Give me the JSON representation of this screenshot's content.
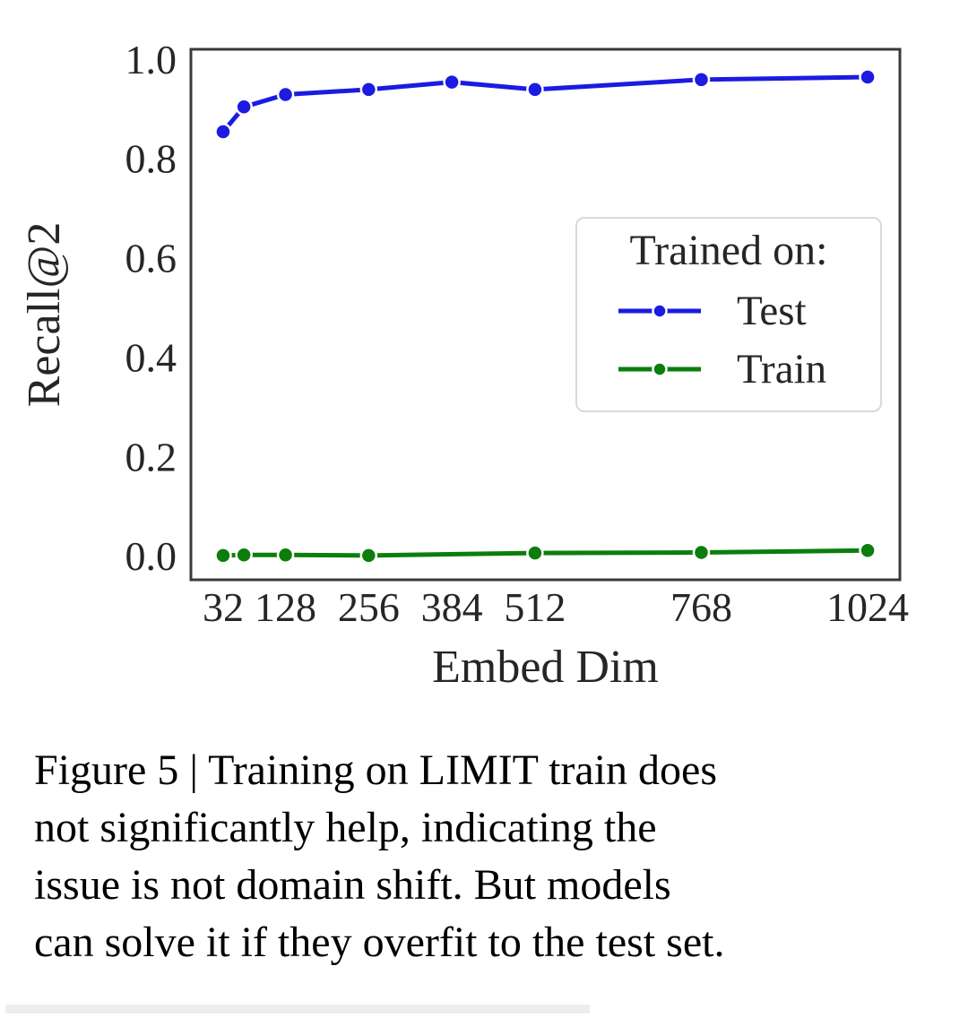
{
  "figure": {
    "caption": {
      "lines": [
        "Figure 5 | Training on LIMIT train does",
        "not significantly help, indicating the",
        "issue is not domain shift. But models",
        "can solve it if they overfit to the test set."
      ]
    }
  },
  "colors": {
    "background": "#ffffff",
    "axis": "#3a3a3a",
    "tick_text": "#262626",
    "caption_text": "#000000",
    "legend_border": "#d9d9d9",
    "test_blue": "#1b1be1",
    "train_green": "#0b7e0b"
  },
  "chart_data": {
    "type": "line",
    "title": "",
    "xlabel": "Embed Dim",
    "ylabel": "Recall@2",
    "x_ticks": [
      32,
      128,
      256,
      384,
      512,
      768,
      1024
    ],
    "x_tick_labels": [
      "32",
      "128",
      "256",
      "384",
      "512",
      "768",
      "1024"
    ],
    "y_ticks": [
      0.0,
      0.2,
      0.4,
      0.6,
      0.8,
      1.0
    ],
    "xlim": [
      -17.6,
      1073.6
    ],
    "ylim": [
      -0.047,
      1.021
    ],
    "grid": false,
    "legend": {
      "title": "Trained on:",
      "position": "center-right"
    },
    "series": [
      {
        "name": "Test",
        "color": "#1b1be1",
        "x": [
          32,
          64,
          128,
          256,
          384,
          512,
          768,
          1024
        ],
        "y": [
          0.855,
          0.905,
          0.93,
          0.94,
          0.955,
          0.94,
          0.96,
          0.965
        ]
      },
      {
        "name": "Train",
        "color": "#0b7e0b",
        "x": [
          32,
          64,
          128,
          256,
          512,
          768,
          1024
        ],
        "y": [
          0.002,
          0.003,
          0.003,
          0.002,
          0.007,
          0.008,
          0.012
        ]
      }
    ]
  }
}
